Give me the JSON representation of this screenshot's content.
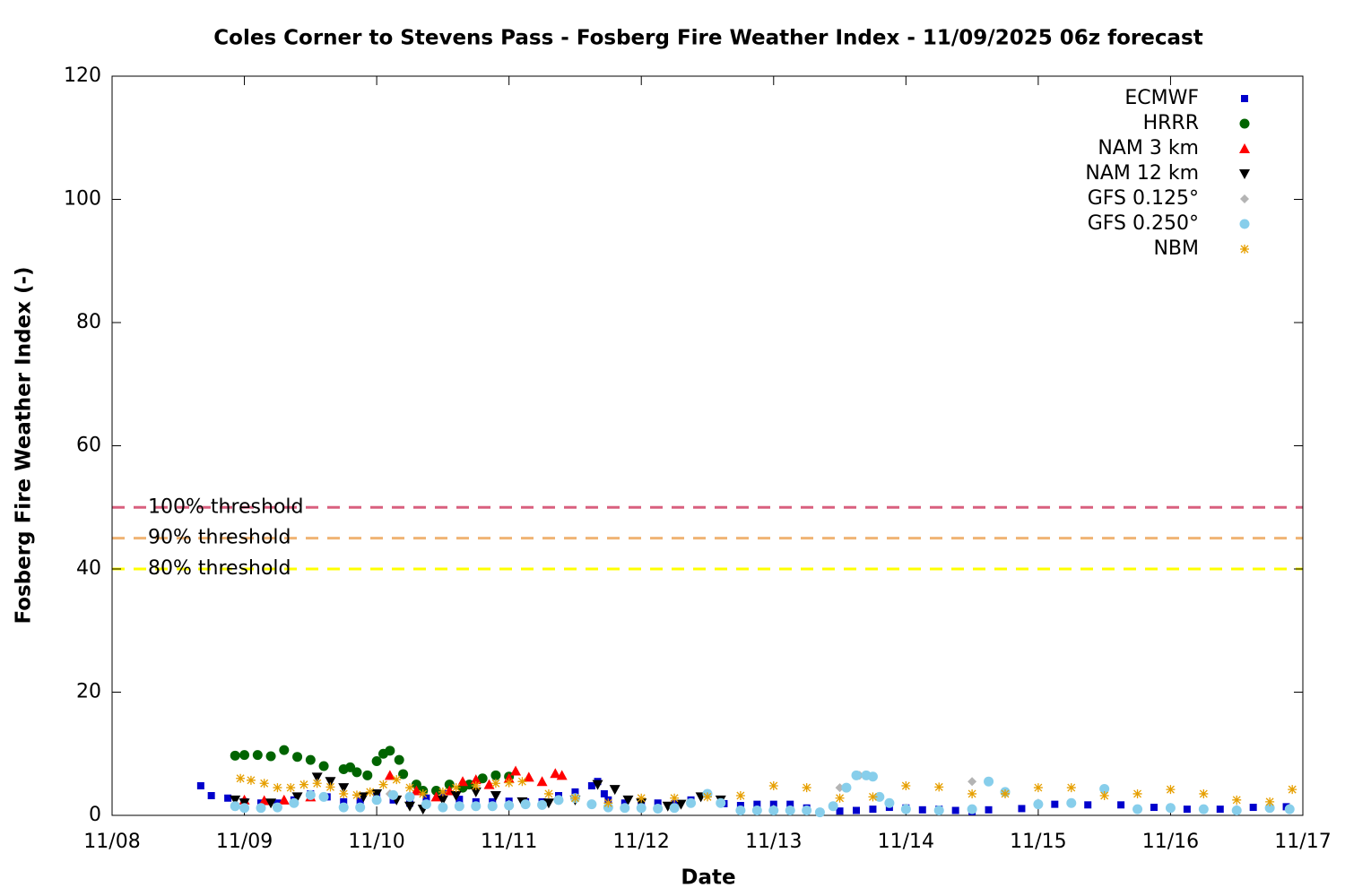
{
  "chart_data": {
    "type": "scatter",
    "title": "Coles Corner to Stevens Pass - Fosberg Fire Weather Index - 11/09/2025 06z forecast",
    "x_label": "Date",
    "y_label": "Fosberg Fire Weather Index (-)",
    "xlim": [
      0,
      9
    ],
    "xticks": [
      {
        "value": 0,
        "label": "11/08"
      },
      {
        "value": 1,
        "label": "11/09"
      },
      {
        "value": 2,
        "label": "11/10"
      },
      {
        "value": 3,
        "label": "11/11"
      },
      {
        "value": 4,
        "label": "11/12"
      },
      {
        "value": 5,
        "label": "11/13"
      },
      {
        "value": 6,
        "label": "11/14"
      },
      {
        "value": 7,
        "label": "11/15"
      },
      {
        "value": 8,
        "label": "11/16"
      },
      {
        "value": 9,
        "label": "11/17"
      }
    ],
    "ylim": [
      0,
      120
    ],
    "yticks": [
      0,
      20,
      40,
      60,
      80,
      100,
      120
    ],
    "legend": "top-right",
    "thresholds": [
      {
        "label": "100% threshold",
        "value": 50,
        "color": "#d9607f"
      },
      {
        "label": "90% threshold",
        "value": 45,
        "color": "#f0b474"
      },
      {
        "label": "80% threshold",
        "value": 40,
        "color": "#ffff00"
      }
    ],
    "series": [
      {
        "name": "ECMWF",
        "color": "#0000cc",
        "marker": "square",
        "x": [
          0.67,
          0.75,
          0.875,
          1.0,
          1.125,
          1.25,
          1.375,
          1.5,
          1.625,
          1.75,
          1.875,
          2.0,
          2.125,
          2.25,
          2.375,
          2.5,
          2.625,
          2.75,
          2.875,
          3.0,
          3.125,
          3.25,
          3.375,
          3.5,
          3.625,
          3.67,
          3.72,
          3.75,
          3.875,
          4.0,
          4.125,
          4.25,
          4.375,
          4.5,
          4.625,
          4.75,
          4.875,
          5.0,
          5.125,
          5.25,
          5.5,
          5.625,
          5.75,
          5.875,
          6.0,
          6.125,
          6.25,
          6.375,
          6.5,
          6.625,
          6.875,
          7.125,
          7.375,
          7.625,
          7.875,
          8.125,
          8.375,
          8.625,
          8.875
        ],
        "values": [
          4.8,
          3.2,
          2.8,
          2.2,
          2.0,
          2.0,
          2.5,
          3.5,
          3.0,
          2.2,
          2.3,
          3.5,
          2.5,
          2.0,
          2.8,
          3.5,
          2.6,
          2.2,
          2.2,
          2.3,
          2.2,
          2.2,
          3.2,
          3.8,
          4.8,
          5.5,
          3.5,
          2.5,
          2.0,
          2.0,
          2.0,
          1.9,
          2.5,
          3.5,
          1.9,
          1.6,
          1.8,
          1.8,
          1.8,
          1.2,
          0.7,
          0.8,
          1.0,
          1.3,
          1.2,
          0.9,
          1.0,
          0.8,
          0.6,
          0.9,
          1.1,
          1.8,
          1.7,
          1.7,
          1.3,
          1.0,
          1.0,
          1.3,
          1.4
        ]
      },
      {
        "name": "HRRR",
        "color": "#006400",
        "marker": "circle",
        "x": [
          0.93,
          1.0,
          1.1,
          1.2,
          1.3,
          1.4,
          1.5,
          1.6,
          1.75,
          1.8,
          1.85,
          1.93,
          2.0,
          2.05,
          2.1,
          2.17,
          2.2,
          2.3,
          2.35,
          2.45,
          2.55,
          2.65,
          2.7,
          2.8,
          2.9,
          3.0
        ],
        "values": [
          9.7,
          9.8,
          9.8,
          9.6,
          10.6,
          9.5,
          9.0,
          8.0,
          7.5,
          7.8,
          7.0,
          6.5,
          8.8,
          10.0,
          10.5,
          9.0,
          6.7,
          5.0,
          4.0,
          4.0,
          5.0,
          4.5,
          5.0,
          6.0,
          6.5,
          6.3
        ]
      },
      {
        "name": "NAM 3 km",
        "color": "#ff0000",
        "marker": "triangle-up",
        "x": [
          1.0,
          1.15,
          1.3,
          1.5,
          2.1,
          2.3,
          2.45,
          2.55,
          2.65,
          2.75,
          2.85,
          3.0,
          3.05,
          3.15,
          3.25,
          3.35,
          3.4
        ],
        "values": [
          2.5,
          2.4,
          2.5,
          3.0,
          6.5,
          4.0,
          3.0,
          4.0,
          5.5,
          5.8,
          5.0,
          6.0,
          7.2,
          6.2,
          5.5,
          6.8,
          6.5
        ]
      },
      {
        "name": "NAM 12 km",
        "color": "#000000",
        "marker": "triangle-down",
        "x": [
          0.93,
          1.0,
          1.2,
          1.4,
          1.55,
          1.65,
          1.75,
          1.9,
          2.0,
          2.15,
          2.25,
          2.35,
          2.5,
          2.6,
          2.75,
          2.9,
          3.1,
          3.3,
          3.5,
          3.67,
          3.8,
          3.9,
          4.0,
          4.2,
          4.3,
          4.45,
          4.6
        ],
        "values": [
          2.5,
          2.0,
          2.0,
          3.0,
          6.2,
          5.5,
          4.5,
          3.0,
          3.5,
          2.5,
          1.5,
          1.0,
          2.5,
          3.2,
          3.8,
          3.2,
          2.2,
          2.0,
          2.5,
          5.0,
          4.2,
          2.5,
          2.0,
          1.5,
          1.8,
          3.0,
          2.5
        ]
      },
      {
        "name": "GFS 0.125°",
        "color": "#b4b4b4",
        "marker": "diamond",
        "x": [
          0.93,
          1.5,
          2.1,
          2.5,
          3.0,
          3.5,
          4.0,
          4.5,
          5.0,
          5.5,
          5.65,
          6.0,
          6.5,
          7.0,
          7.5,
          8.0,
          8.5,
          8.9
        ],
        "values": [
          1.5,
          3.2,
          3.5,
          1.5,
          1.8,
          2.8,
          1.3,
          3.5,
          1.0,
          4.5,
          6.5,
          1.2,
          5.5,
          2.0,
          4.2,
          1.3,
          1.0,
          1.2
        ]
      },
      {
        "name": "GFS 0.250°",
        "color": "#87ceeb",
        "marker": "circle",
        "x": [
          0.93,
          1.0,
          1.125,
          1.25,
          1.375,
          1.5,
          1.6,
          1.75,
          1.875,
          2.0,
          2.125,
          2.25,
          2.375,
          2.5,
          2.625,
          2.75,
          2.875,
          3.0,
          3.125,
          3.25,
          3.375,
          3.5,
          3.625,
          3.75,
          3.875,
          4.0,
          4.125,
          4.25,
          4.375,
          4.5,
          4.6,
          4.75,
          4.875,
          5.0,
          5.125,
          5.25,
          5.35,
          5.45,
          5.55,
          5.625,
          5.7,
          5.75,
          5.8,
          5.875,
          6.0,
          6.25,
          6.5,
          6.625,
          6.75,
          7.0,
          7.25,
          7.5,
          7.75,
          8.0,
          8.25,
          8.5,
          8.75,
          8.9
        ],
        "values": [
          1.5,
          1.2,
          1.2,
          1.3,
          2.0,
          3.3,
          3.0,
          1.3,
          1.3,
          2.5,
          3.3,
          3.0,
          1.8,
          1.3,
          1.5,
          1.5,
          1.5,
          1.6,
          1.8,
          1.7,
          2.5,
          2.8,
          1.8,
          1.3,
          1.2,
          1.2,
          1.1,
          1.2,
          2.0,
          3.5,
          2.0,
          0.8,
          0.8,
          0.8,
          0.8,
          0.8,
          0.5,
          1.5,
          4.5,
          6.5,
          6.5,
          6.3,
          3.0,
          2.0,
          1.0,
          0.8,
          1.0,
          5.5,
          3.8,
          1.8,
          2.0,
          4.3,
          1.0,
          1.2,
          1.0,
          0.8,
          1.2,
          1.0
        ]
      },
      {
        "name": "NBM",
        "color": "#e69f00",
        "marker": "asterisk",
        "x": [
          0.97,
          1.05,
          1.15,
          1.25,
          1.35,
          1.45,
          1.55,
          1.65,
          1.75,
          1.85,
          1.95,
          2.05,
          2.15,
          2.25,
          2.35,
          2.5,
          2.6,
          2.75,
          2.9,
          3.0,
          3.1,
          3.3,
          3.5,
          3.75,
          4.0,
          4.25,
          4.5,
          4.75,
          5.0,
          5.25,
          5.5,
          5.75,
          6.0,
          6.25,
          6.5,
          6.75,
          7.0,
          7.25,
          7.5,
          7.75,
          8.0,
          8.25,
          8.5,
          8.75,
          8.92
        ],
        "values": [
          6.0,
          5.7,
          5.2,
          4.5,
          4.5,
          5.0,
          5.2,
          4.6,
          3.5,
          3.3,
          3.8,
          5.0,
          5.8,
          4.5,
          3.5,
          3.8,
          4.5,
          4.8,
          5.2,
          5.3,
          5.5,
          3.5,
          2.8,
          2.0,
          2.8,
          2.8,
          3.0,
          3.2,
          4.8,
          4.5,
          2.8,
          3.0,
          4.8,
          4.6,
          3.5,
          3.5,
          4.5,
          4.5,
          3.2,
          3.5,
          4.2,
          3.5,
          2.5,
          2.2,
          4.2
        ]
      }
    ]
  }
}
